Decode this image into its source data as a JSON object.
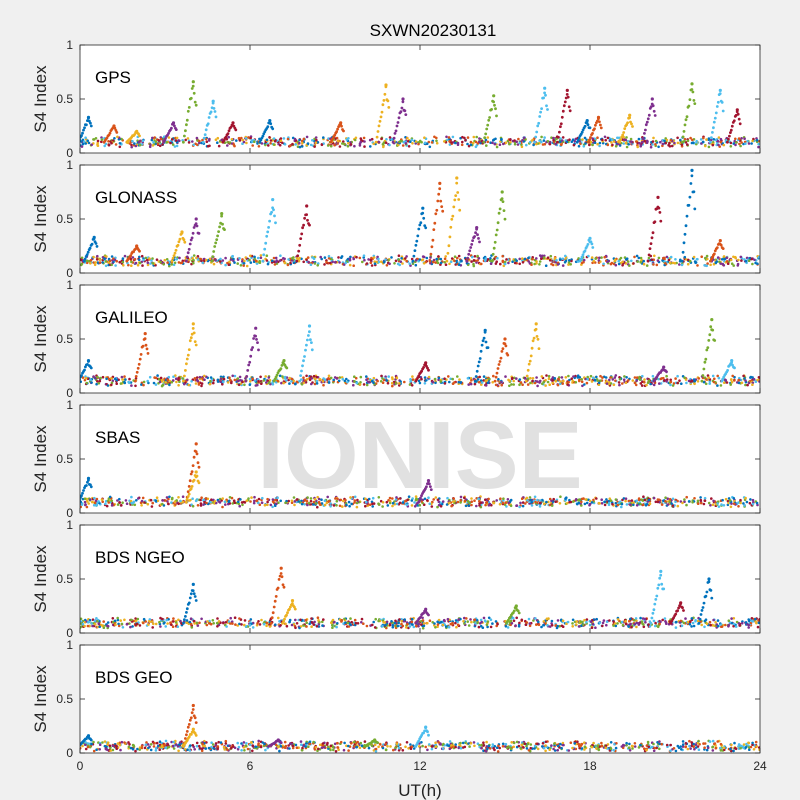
{
  "figure": {
    "title": "SXWN20230131",
    "xlabel": "UT(h)",
    "watermark": "IONISE",
    "background": "#f0f0f0",
    "axes_background": "#ffffff"
  },
  "chart_data": [
    {
      "type": "scatter",
      "panel_label": "GPS",
      "ylabel": "S4 Index",
      "xlim": [
        0,
        24
      ],
      "ylim": [
        0,
        1
      ],
      "xticks": [
        0,
        6,
        12,
        18,
        24
      ],
      "yticks": [
        0,
        0.5,
        1
      ],
      "grid": false,
      "baseline": 0.1,
      "spikes": [
        {
          "x": 0.3,
          "y": 0.33
        },
        {
          "x": 1.2,
          "y": 0.25
        },
        {
          "x": 2.0,
          "y": 0.2
        },
        {
          "x": 3.3,
          "y": 0.28
        },
        {
          "x": 4.0,
          "y": 0.66
        },
        {
          "x": 4.7,
          "y": 0.48
        },
        {
          "x": 5.4,
          "y": 0.28
        },
        {
          "x": 6.7,
          "y": 0.3
        },
        {
          "x": 9.2,
          "y": 0.28
        },
        {
          "x": 10.8,
          "y": 0.63
        },
        {
          "x": 11.4,
          "y": 0.5
        },
        {
          "x": 14.6,
          "y": 0.53
        },
        {
          "x": 16.4,
          "y": 0.6
        },
        {
          "x": 17.2,
          "y": 0.58
        },
        {
          "x": 17.9,
          "y": 0.3
        },
        {
          "x": 18.3,
          "y": 0.33
        },
        {
          "x": 19.4,
          "y": 0.35
        },
        {
          "x": 20.2,
          "y": 0.5
        },
        {
          "x": 21.6,
          "y": 0.64
        },
        {
          "x": 22.6,
          "y": 0.58
        },
        {
          "x": 23.2,
          "y": 0.4
        }
      ]
    },
    {
      "type": "scatter",
      "panel_label": "GLONASS",
      "ylabel": "S4 Index",
      "xlim": [
        0,
        24
      ],
      "ylim": [
        0,
        1
      ],
      "xticks": [
        0,
        6,
        12,
        18,
        24
      ],
      "yticks": [
        0,
        0.5,
        1
      ],
      "grid": false,
      "baseline": 0.11,
      "spikes": [
        {
          "x": 0.5,
          "y": 0.33
        },
        {
          "x": 2.0,
          "y": 0.25
        },
        {
          "x": 3.6,
          "y": 0.38
        },
        {
          "x": 4.1,
          "y": 0.5
        },
        {
          "x": 5.0,
          "y": 0.55
        },
        {
          "x": 6.8,
          "y": 0.68
        },
        {
          "x": 8.0,
          "y": 0.62
        },
        {
          "x": 12.1,
          "y": 0.6
        },
        {
          "x": 12.7,
          "y": 0.83
        },
        {
          "x": 13.3,
          "y": 0.88
        },
        {
          "x": 14.0,
          "y": 0.42
        },
        {
          "x": 14.9,
          "y": 0.75
        },
        {
          "x": 18.0,
          "y": 0.32
        },
        {
          "x": 20.4,
          "y": 0.7
        },
        {
          "x": 21.6,
          "y": 0.95
        },
        {
          "x": 22.6,
          "y": 0.3
        }
      ]
    },
    {
      "type": "scatter",
      "panel_label": "GALILEO",
      "ylabel": "S4 Index",
      "xlim": [
        0,
        24
      ],
      "ylim": [
        0,
        1
      ],
      "xticks": [
        0,
        6,
        12,
        18,
        24
      ],
      "yticks": [
        0,
        0.5,
        1
      ],
      "grid": false,
      "baseline": 0.11,
      "spikes": [
        {
          "x": 0.3,
          "y": 0.3
        },
        {
          "x": 2.3,
          "y": 0.55
        },
        {
          "x": 4.0,
          "y": 0.64
        },
        {
          "x": 6.2,
          "y": 0.6
        },
        {
          "x": 7.2,
          "y": 0.3
        },
        {
          "x": 8.1,
          "y": 0.62
        },
        {
          "x": 12.2,
          "y": 0.28
        },
        {
          "x": 14.3,
          "y": 0.58
        },
        {
          "x": 15.0,
          "y": 0.5
        },
        {
          "x": 16.1,
          "y": 0.64
        },
        {
          "x": 20.6,
          "y": 0.24
        },
        {
          "x": 22.3,
          "y": 0.68
        },
        {
          "x": 23.0,
          "y": 0.3
        }
      ]
    },
    {
      "type": "scatter",
      "panel_label": "SBAS",
      "ylabel": "S4 Index",
      "xlim": [
        0,
        24
      ],
      "ylim": [
        0,
        1
      ],
      "xticks": [
        0,
        6,
        12,
        18,
        24
      ],
      "yticks": [
        0,
        0.5,
        1
      ],
      "grid": false,
      "baseline": 0.1,
      "spikes": [
        {
          "x": 0.3,
          "y": 0.32
        },
        {
          "x": 4.1,
          "y": 0.64
        },
        {
          "x": 4.1,
          "y": 0.38
        },
        {
          "x": 12.3,
          "y": 0.3
        }
      ]
    },
    {
      "type": "scatter",
      "panel_label": "BDS NGEO",
      "ylabel": "S4 Index",
      "xlim": [
        0,
        24
      ],
      "ylim": [
        0,
        1
      ],
      "xticks": [
        0,
        6,
        12,
        18,
        24
      ],
      "yticks": [
        0,
        0.5,
        1
      ],
      "grid": false,
      "baseline": 0.09,
      "spikes": [
        {
          "x": 4.0,
          "y": 0.45
        },
        {
          "x": 7.1,
          "y": 0.6
        },
        {
          "x": 7.5,
          "y": 0.3
        },
        {
          "x": 12.2,
          "y": 0.22
        },
        {
          "x": 15.4,
          "y": 0.25
        },
        {
          "x": 20.5,
          "y": 0.57
        },
        {
          "x": 21.2,
          "y": 0.28
        },
        {
          "x": 22.2,
          "y": 0.5
        }
      ]
    },
    {
      "type": "scatter",
      "panel_label": "BDS GEO",
      "ylabel": "S4 Index",
      "xlim": [
        0,
        24
      ],
      "ylim": [
        0,
        1
      ],
      "xticks": [
        0,
        6,
        12,
        18,
        24
      ],
      "yticks": [
        0,
        0.5,
        1
      ],
      "grid": false,
      "baseline": 0.06,
      "spikes": [
        {
          "x": 0.3,
          "y": 0.16
        },
        {
          "x": 4.0,
          "y": 0.44
        },
        {
          "x": 4.0,
          "y": 0.22
        },
        {
          "x": 7.0,
          "y": 0.12
        },
        {
          "x": 10.4,
          "y": 0.12
        },
        {
          "x": 12.2,
          "y": 0.24
        }
      ]
    }
  ],
  "series_colors": [
    "#0072bd",
    "#d95319",
    "#edb120",
    "#7e2f8e",
    "#77ac30",
    "#4dbeee",
    "#a2142f"
  ]
}
